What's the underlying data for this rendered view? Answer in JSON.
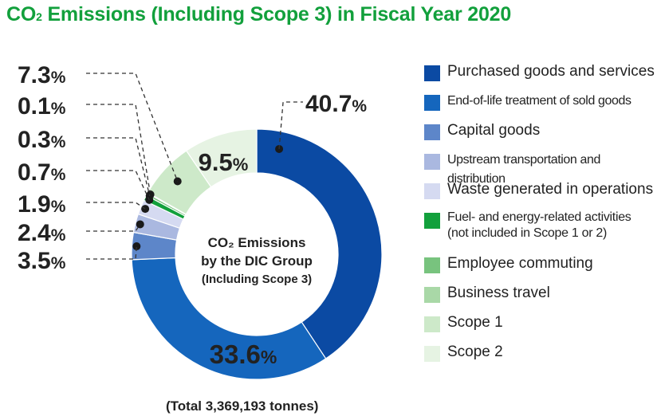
{
  "title_main": "CO",
  "title_sub": "2",
  "title_rest": " Emissions (Including Scope 3) in Fiscal Year 2020",
  "center_label": {
    "line1": "CO₂ Emissions",
    "line2": "by the DIC Group",
    "line3": "(Including Scope 3)"
  },
  "total": "(Total 3,369,193 tonnes)",
  "chart_data": {
    "type": "pie",
    "donut": true,
    "series": [
      {
        "name": "Purchased goods and services",
        "value": 40.7,
        "color": "#0b4aa3",
        "label": "40.7%"
      },
      {
        "name": "End-of-life treatment of sold goods",
        "value": 33.6,
        "color": "#1566bd",
        "label": "33.6%"
      },
      {
        "name": "Capital goods",
        "value": 3.5,
        "color": "#5d86c9",
        "label": "3.5%"
      },
      {
        "name": "Upstream transportation and distribution",
        "value": 2.4,
        "color": "#aab8e0",
        "label": "2.4%"
      },
      {
        "name": "Waste generated in operations",
        "value": 1.9,
        "color": "#d5daf1",
        "label": "1.9%"
      },
      {
        "name": "Fuel- and energy-related activities\n(not included in Scope 1 or 2)",
        "value": 0.7,
        "color": "#12a03c",
        "label": "0.7%"
      },
      {
        "name": "Employee commuting",
        "value": 0.3,
        "color": "#78c37e",
        "label": "0.3%"
      },
      {
        "name": "Business travel",
        "value": 0.1,
        "color": "#a9d8a7",
        "label": "0.1%"
      },
      {
        "name": "Scope 1",
        "value": 7.3,
        "color": "#cde9c9",
        "label": "7.3%"
      },
      {
        "name": "Scope 2",
        "value": 9.5,
        "color": "#e6f3e3",
        "label": "9.5%"
      }
    ]
  }
}
